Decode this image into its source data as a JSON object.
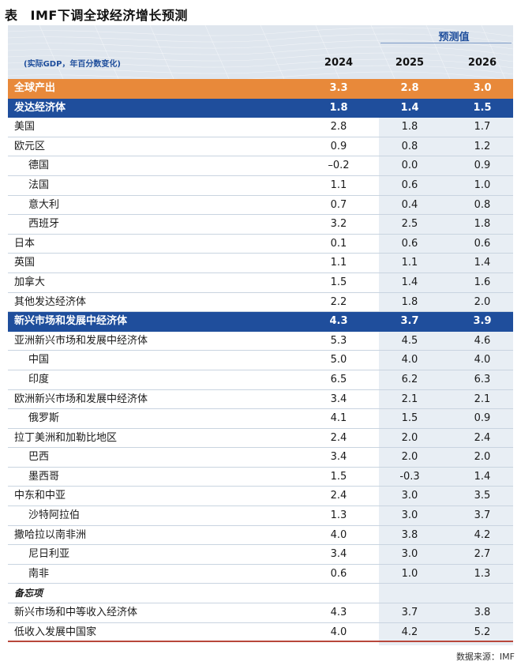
{
  "title": {
    "label": "表",
    "text": "IMF下调全球经济增长预测"
  },
  "header": {
    "forecast_label": "预测值",
    "unit_label": "(实际GDP，年百分数变化)",
    "years": [
      "2024",
      "2025",
      "2026"
    ]
  },
  "rows": [
    {
      "name": "全球产出",
      "values": [
        "3.3",
        "2.8",
        "3.0"
      ],
      "style": "world"
    },
    {
      "name": "发达经济体",
      "values": [
        "1.8",
        "1.4",
        "1.5"
      ],
      "style": "group"
    },
    {
      "name": "美国",
      "values": [
        "2.8",
        "1.8",
        "1.7"
      ],
      "style": "normal"
    },
    {
      "name": "欧元区",
      "values": [
        "0.9",
        "0.8",
        "1.2"
      ],
      "style": "normal"
    },
    {
      "name": "德国",
      "values": [
        "–0.2",
        "0.0",
        "0.9"
      ],
      "style": "sub"
    },
    {
      "name": "法国",
      "values": [
        "1.1",
        "0.6",
        "1.0"
      ],
      "style": "sub"
    },
    {
      "name": "意大利",
      "values": [
        "0.7",
        "0.4",
        "0.8"
      ],
      "style": "sub"
    },
    {
      "name": "西班牙",
      "values": [
        "3.2",
        "2.5",
        "1.8"
      ],
      "style": "sub"
    },
    {
      "name": "日本",
      "values": [
        "0.1",
        "0.6",
        "0.6"
      ],
      "style": "normal"
    },
    {
      "name": "英国",
      "values": [
        "1.1",
        "1.1",
        "1.4"
      ],
      "style": "normal"
    },
    {
      "name": "加拿大",
      "values": [
        "1.5",
        "1.4",
        "1.6"
      ],
      "style": "normal"
    },
    {
      "name": "其他发达经济体",
      "values": [
        "2.2",
        "1.8",
        "2.0"
      ],
      "style": "normal"
    },
    {
      "name": "新兴市场和发展中经济体",
      "values": [
        "4.3",
        "3.7",
        "3.9"
      ],
      "style": "group"
    },
    {
      "name": "亚洲新兴市场和发展中经济体",
      "values": [
        "5.3",
        "4.5",
        "4.6"
      ],
      "style": "normal"
    },
    {
      "name": "中国",
      "values": [
        "5.0",
        "4.0",
        "4.0"
      ],
      "style": "sub"
    },
    {
      "name": "印度",
      "values": [
        "6.5",
        "6.2",
        "6.3"
      ],
      "style": "sub"
    },
    {
      "name": "欧洲新兴市场和发展中经济体",
      "values": [
        "3.4",
        "2.1",
        "2.1"
      ],
      "style": "normal"
    },
    {
      "name": "俄罗斯",
      "values": [
        "4.1",
        "1.5",
        "0.9"
      ],
      "style": "sub"
    },
    {
      "name": "拉丁美洲和加勒比地区",
      "values": [
        "2.4",
        "2.0",
        "2.4"
      ],
      "style": "normal"
    },
    {
      "name": "巴西",
      "values": [
        "3.4",
        "2.0",
        "2.0"
      ],
      "style": "sub"
    },
    {
      "name": "墨西哥",
      "values": [
        "1.5",
        "-0.3",
        "1.4"
      ],
      "style": "sub"
    },
    {
      "name": "中东和中亚",
      "values": [
        "2.4",
        "3.0",
        "3.5"
      ],
      "style": "normal"
    },
    {
      "name": "沙特阿拉伯",
      "values": [
        "1.3",
        "3.0",
        "3.7"
      ],
      "style": "sub"
    },
    {
      "name": "撒哈拉以南非洲",
      "values": [
        "4.0",
        "3.8",
        "4.2"
      ],
      "style": "normal"
    },
    {
      "name": "尼日利亚",
      "values": [
        "3.4",
        "3.0",
        "2.7"
      ],
      "style": "sub"
    },
    {
      "name": "南非",
      "values": [
        "0.6",
        "1.0",
        "1.3"
      ],
      "style": "sub"
    },
    {
      "name": "备忘项",
      "values": [
        "",
        "",
        ""
      ],
      "style": "memo"
    },
    {
      "name": "新兴市场和中等收入经济体",
      "values": [
        "4.3",
        "3.7",
        "3.8"
      ],
      "style": "normal"
    },
    {
      "name": "低收入发展中国家",
      "values": [
        "4.0",
        "4.2",
        "5.2"
      ],
      "style": "normal"
    }
  ],
  "source": "数据来源：IMF",
  "colors": {
    "world_row": "#e8893a",
    "group_row": "#1f4e9c",
    "forecast_shade": "#e8eef4",
    "rule": "#b8473b"
  }
}
